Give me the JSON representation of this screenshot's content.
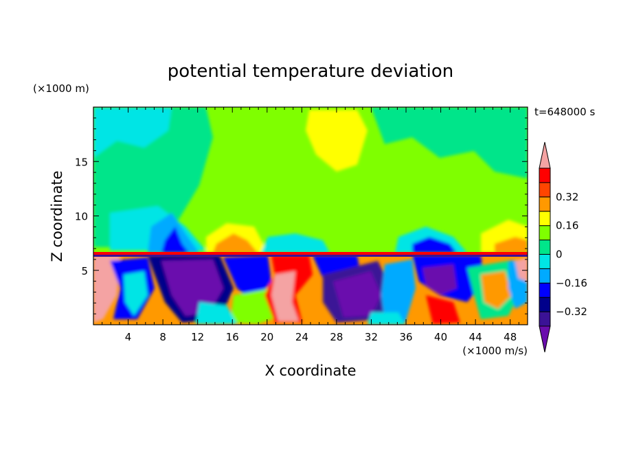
{
  "chart_data": {
    "type": "heatmap",
    "title": "potential temperature deviation",
    "xlabel": "X coordinate",
    "ylabel": "Z coordinate",
    "x_unit": "(×1000 m/s)",
    "y_unit": "(×1000 m)",
    "time_label": "t=648000 s",
    "xlim": [
      0,
      50
    ],
    "ylim": [
      0,
      20
    ],
    "x_ticks": [
      4,
      8,
      12,
      16,
      20,
      24,
      28,
      32,
      36,
      40,
      44,
      48
    ],
    "y_ticks": [
      5,
      10,
      15
    ],
    "colorbar": {
      "levels": [
        -0.48,
        -0.4,
        -0.32,
        -0.24,
        -0.16,
        -0.08,
        0,
        0.08,
        0.16,
        0.24,
        0.32,
        0.4
      ],
      "labels": [
        "0.32",
        "0.16",
        "0",
        "−0.16",
        "−0.32"
      ],
      "label_values": [
        0.32,
        0.16,
        0,
        -0.16,
        -0.32
      ],
      "colors": [
        "#6a0dad",
        "#3b1296",
        "#00008b",
        "#0000ff",
        "#00aaff",
        "#00e5e5",
        "#00e58a",
        "#7fff00",
        "#ffff00",
        "#ff9900",
        "#ff4500",
        "#ff0000",
        "#f4a3a3"
      ]
    },
    "regions": {
      "upper": {
        "z_range": [
          6.5,
          20
        ],
        "dominant_values": [
          0,
          -0.08,
          0.08,
          0.16
        ],
        "note_values": "cyan left and mid, yellow center-top"
      },
      "lower": {
        "z_range": [
          0,
          6.5
        ],
        "dominant_values": [
          -0.48,
          -0.32,
          -0.16,
          0.16,
          0.32,
          0.4
        ]
      }
    }
  }
}
